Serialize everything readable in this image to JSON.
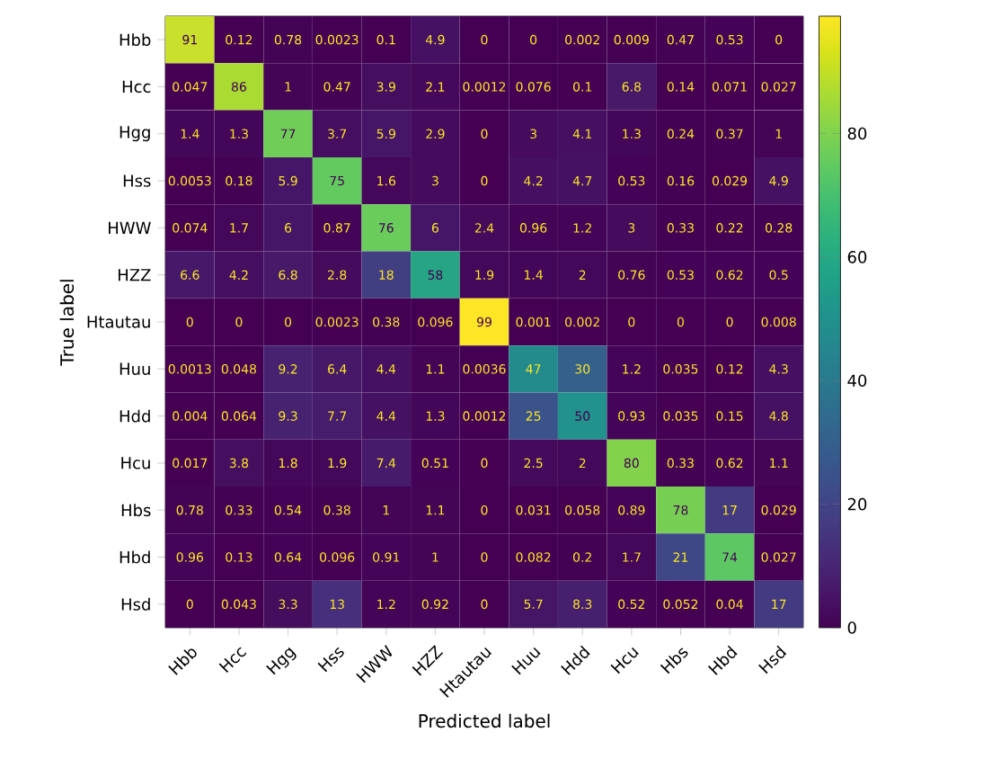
{
  "chart_data": {
    "type": "heatmap",
    "xlabel": "Predicted label",
    "ylabel": "True label",
    "categories": [
      "Hbb",
      "Hcc",
      "Hgg",
      "Hss",
      "HWW",
      "HZZ",
      "Htautau",
      "Huu",
      "Hdd",
      "Hcu",
      "Hbs",
      "Hbd",
      "Hsd"
    ],
    "y_categories": [
      "Hbb",
      "Hcc",
      "Hgg",
      "Hss",
      "HWW",
      "HZZ",
      "Htautau",
      "Huu",
      "Hdd",
      "Hcu",
      "Hbs",
      "Hbd",
      "Hsd"
    ],
    "cells": [
      [
        91,
        0.12,
        0.78,
        0.0023,
        0.1,
        4.9,
        0,
        0,
        0.002,
        0.009,
        0.47,
        0.53,
        0
      ],
      [
        0.047,
        86,
        1,
        0.47,
        3.9,
        2.1,
        0.0012,
        0.076,
        0.1,
        6.8,
        0.14,
        0.071,
        0.027
      ],
      [
        1.4,
        1.3,
        77,
        3.7,
        5.9,
        2.9,
        0,
        3,
        4.1,
        1.3,
        0.24,
        0.37,
        1
      ],
      [
        0.0053,
        0.18,
        5.9,
        75,
        1.6,
        3,
        0,
        4.2,
        4.7,
        0.53,
        0.16,
        0.029,
        4.9
      ],
      [
        0.074,
        1.7,
        6,
        0.87,
        76,
        6,
        2.4,
        0.96,
        1.2,
        3,
        0.33,
        0.22,
        0.28
      ],
      [
        6.6,
        4.2,
        6.8,
        2.8,
        18,
        58,
        1.9,
        1.4,
        2,
        0.76,
        0.53,
        0.62,
        0.5
      ],
      [
        0,
        0,
        0,
        0.0023,
        0.38,
        0.096,
        99,
        0.001,
        0.002,
        0,
        0,
        0,
        0.008
      ],
      [
        0.0013,
        0.048,
        9.2,
        6.4,
        4.4,
        1.1,
        0.0036,
        47,
        30,
        1.2,
        0.035,
        0.12,
        4.3
      ],
      [
        0.004,
        0.064,
        9.3,
        7.7,
        4.4,
        1.3,
        0.0012,
        25,
        50,
        0.93,
        0.035,
        0.15,
        4.8
      ],
      [
        0.017,
        3.8,
        1.8,
        1.9,
        7.4,
        0.51,
        0,
        2.5,
        2,
        80,
        0.33,
        0.62,
        1.1
      ],
      [
        0.78,
        0.33,
        0.54,
        0.38,
        1,
        1.1,
        0,
        0.031,
        0.058,
        0.89,
        78,
        17,
        0.029
      ],
      [
        0.96,
        0.13,
        0.64,
        0.096,
        0.91,
        1,
        0,
        0.082,
        0.2,
        1.7,
        21,
        74,
        0.027
      ],
      [
        0,
        0.043,
        3.3,
        13,
        1.2,
        0.92,
        0,
        5.7,
        8.3,
        0.52,
        0.052,
        0.04,
        17
      ]
    ],
    "data_labels": true,
    "clim": [
      0,
      99
    ],
    "cticks": [
      0,
      20,
      40,
      60,
      80
    ]
  }
}
